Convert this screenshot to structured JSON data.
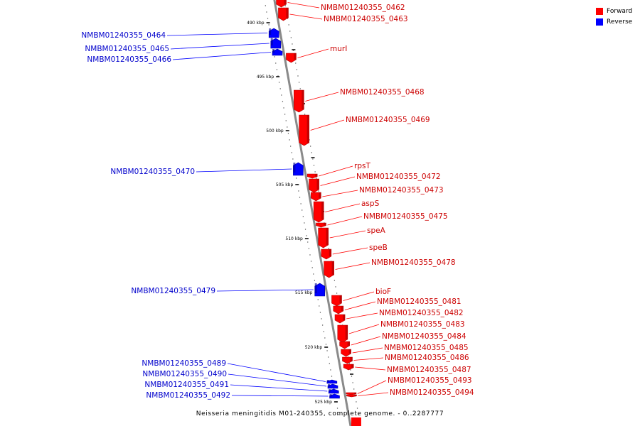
{
  "legend": {
    "forward_label": "Forward",
    "reverse_label": "Reverse",
    "forward_color": "#ff0000",
    "reverse_color": "#0000ff"
  },
  "caption": "Neisseria meningitidis M01-240355, complete genome. - 0..2287777",
  "colors": {
    "forward_label": "#cc0000",
    "reverse_label": "#0000cc",
    "axis": "#888888"
  },
  "ticks": [
    {
      "label": "490 kbp"
    },
    {
      "label": "495 kbp"
    },
    {
      "label": "500 kbp"
    },
    {
      "label": "505 kbp"
    },
    {
      "label": "510 kbp"
    },
    {
      "label": "515 kbp"
    },
    {
      "label": "520 kbp"
    },
    {
      "label": "525 kbp"
    }
  ],
  "genes": [
    {
      "name": "NMBM01240355_0462",
      "strand": "forward"
    },
    {
      "name": "NMBM01240355_0463",
      "strand": "forward"
    },
    {
      "name": "NMBM01240355_0464",
      "strand": "reverse"
    },
    {
      "name": "NMBM01240355_0465",
      "strand": "reverse"
    },
    {
      "name": "NMBM01240355_0466",
      "strand": "reverse"
    },
    {
      "name": "murI",
      "strand": "forward"
    },
    {
      "name": "NMBM01240355_0468",
      "strand": "forward"
    },
    {
      "name": "NMBM01240355_0469",
      "strand": "forward"
    },
    {
      "name": "NMBM01240355_0470",
      "strand": "reverse"
    },
    {
      "name": "rpsT",
      "strand": "forward"
    },
    {
      "name": "NMBM01240355_0472",
      "strand": "forward"
    },
    {
      "name": "NMBM01240355_0473",
      "strand": "forward"
    },
    {
      "name": "aspS",
      "strand": "forward"
    },
    {
      "name": "NMBM01240355_0475",
      "strand": "forward"
    },
    {
      "name": "speA",
      "strand": "forward"
    },
    {
      "name": "speB",
      "strand": "forward"
    },
    {
      "name": "NMBM01240355_0478",
      "strand": "forward"
    },
    {
      "name": "NMBM01240355_0479",
      "strand": "reverse"
    },
    {
      "name": "bioF",
      "strand": "forward"
    },
    {
      "name": "NMBM01240355_0481",
      "strand": "forward"
    },
    {
      "name": "NMBM01240355_0482",
      "strand": "forward"
    },
    {
      "name": "NMBM01240355_0483",
      "strand": "forward"
    },
    {
      "name": "NMBM01240355_0484",
      "strand": "forward"
    },
    {
      "name": "NMBM01240355_0485",
      "strand": "forward"
    },
    {
      "name": "NMBM01240355_0486",
      "strand": "forward"
    },
    {
      "name": "NMBM01240355_0487",
      "strand": "forward"
    },
    {
      "name": "NMBM01240355_0489",
      "strand": "reverse"
    },
    {
      "name": "NMBM01240355_0490",
      "strand": "reverse"
    },
    {
      "name": "NMBM01240355_0491",
      "strand": "reverse"
    },
    {
      "name": "NMBM01240355_0492",
      "strand": "reverse"
    },
    {
      "name": "NMBM01240355_0493",
      "strand": "forward"
    },
    {
      "name": "NMBM01240355_0494",
      "strand": "forward"
    }
  ]
}
